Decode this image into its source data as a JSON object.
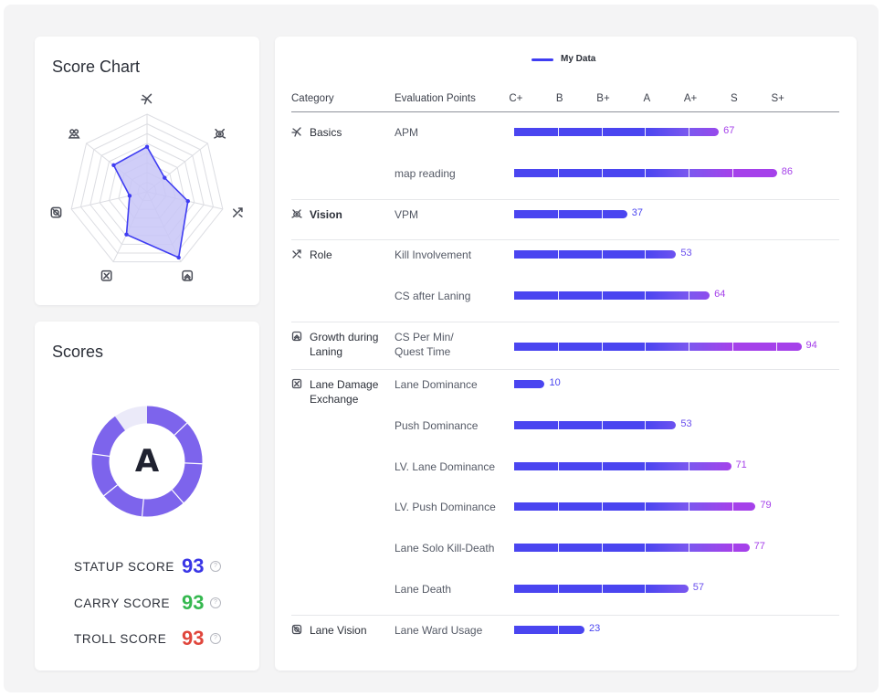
{
  "radar": {
    "title": "Score Chart",
    "axes": [
      {
        "name": "Basics",
        "icon": "basics-icon",
        "value": 0.58
      },
      {
        "name": "Vision",
        "icon": "vision-icon",
        "value": 0.29
      },
      {
        "name": "Role",
        "icon": "role-icon",
        "value": 0.54
      },
      {
        "name": "Growth during Laning",
        "icon": "growth-icon",
        "value": 0.94
      },
      {
        "name": "Lane Damage Exchange",
        "icon": "lane-damage-icon",
        "value": 0.61
      },
      {
        "name": "Lane Vision",
        "icon": "lane-vision-icon",
        "value": 0.23
      },
      {
        "name": "Team",
        "icon": "team-icon",
        "value": 0.55
      }
    ],
    "colors": {
      "fill": "#c8c6f7",
      "stroke": "#3f3df2",
      "grid": "#dcdde2"
    }
  },
  "scores": {
    "title": "Scores",
    "grade": "A",
    "ring_fill": 0.9,
    "ring_color": "#7d64ec",
    "ring_bg": "#ebeaf9",
    "rows": [
      {
        "label": "STATUP SCORE",
        "value": "93",
        "color": "#3a36e6"
      },
      {
        "label": "CARRY SCORE",
        "value": "93",
        "color": "#35b84f"
      },
      {
        "label": "TROLL SCORE",
        "value": "93",
        "color": "#e0463c"
      }
    ],
    "help": "?"
  },
  "table": {
    "legend": "My Data",
    "legend_color": "#3f3df2",
    "headers": {
      "category": "Category",
      "points": "Evaluation Points"
    },
    "grades": [
      "C+",
      "B",
      "B+",
      "A",
      "A+",
      "S",
      "S+"
    ],
    "colors": {
      "low": "#4a45f0",
      "mid": "#7b58ef",
      "high": "#a541ea"
    },
    "groups": [
      {
        "category": "Basics",
        "icon": "basics-icon",
        "bold": false,
        "rows": [
          {
            "label": "APM",
            "value": 67
          },
          {
            "label": "map reading",
            "value": 86
          }
        ]
      },
      {
        "category": "Vision",
        "icon": "vision-icon",
        "bold": true,
        "rows": [
          {
            "label": "VPM",
            "value": 37
          }
        ]
      },
      {
        "category": "Role",
        "icon": "role-icon",
        "bold": false,
        "rows": [
          {
            "label": "Kill Involvement",
            "value": 53
          },
          {
            "label": "CS after Laning",
            "value": 64
          }
        ]
      },
      {
        "category": "Growth during Laning",
        "icon": "growth-icon",
        "bold": false,
        "rows": [
          {
            "label": "CS Per Min/\nQuest Time",
            "value": 94
          }
        ]
      },
      {
        "category": "Lane Damage Exchange",
        "icon": "lane-damage-icon",
        "bold": false,
        "rows": [
          {
            "label": "Lane Dominance",
            "value": 10
          },
          {
            "label": "Push Dominance",
            "value": 53
          },
          {
            "label": "LV. Lane Dominance",
            "value": 71
          },
          {
            "label": "LV. Push Dominance",
            "value": 79
          },
          {
            "label": "Lane Solo Kill-Death",
            "value": 77
          },
          {
            "label": "Lane Death",
            "value": 57
          }
        ]
      },
      {
        "category": "Lane Vision",
        "icon": "lane-vision-icon",
        "bold": false,
        "rows": [
          {
            "label": "Lane Ward Usage",
            "value": 23
          }
        ]
      }
    ]
  }
}
